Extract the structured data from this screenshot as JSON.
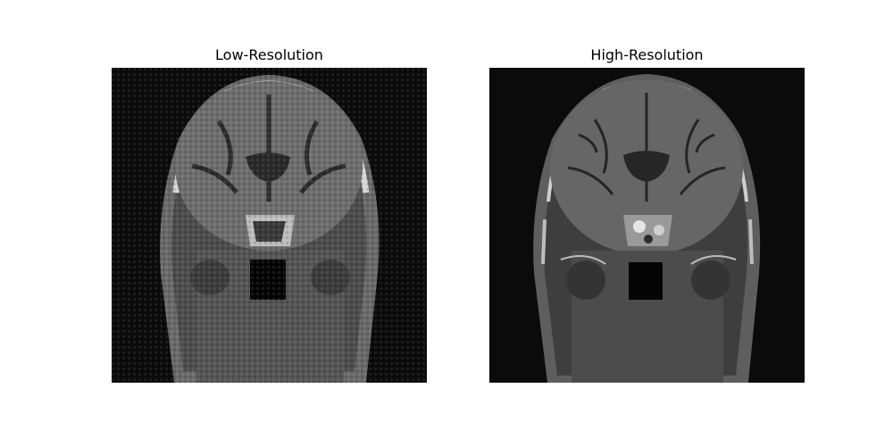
{
  "panels": [
    {
      "title": "Low-Resolution",
      "image": "mri-coronal-brain-low-resolution"
    },
    {
      "title": "High-Resolution",
      "image": "mri-coronal-brain-high-resolution"
    }
  ]
}
